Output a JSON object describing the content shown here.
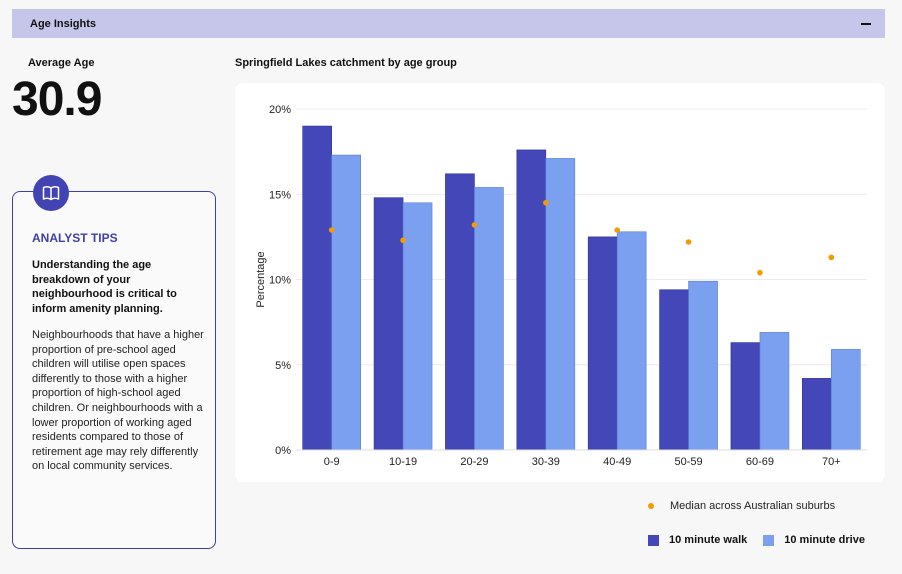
{
  "header": {
    "title": "Age Insights"
  },
  "average": {
    "label": "Average Age",
    "value": "30.9"
  },
  "tips": {
    "heading": "ANALYST TIPS",
    "bold_text": "Understanding the age breakdown of your neighbourhood is critical to inform amenity planning.",
    "body_text": "Neighbourhoods that have a higher proportion of pre-school aged children will utilise open spaces differently to those with a higher proportion of high-school aged children. Or neighbourhoods with a lower proportion of working aged residents compared to those of retirement age may rely differently on local community services.",
    "icon": "book-icon"
  },
  "chart_title": "Springfield Lakes catchment by age group",
  "colors": {
    "walk": "#4347b7",
    "drive": "#7ba0ef",
    "median": "#f59b00",
    "header": "#c5c6ea",
    "accent": "#3f3fa8"
  },
  "chart_data": {
    "type": "bar",
    "title": "Springfield Lakes catchment by age group",
    "xlabel": "",
    "ylabel": "Percentage",
    "categories": [
      "0-9",
      "10-19",
      "20-29",
      "30-39",
      "40-49",
      "50-59",
      "60-69",
      "70+"
    ],
    "series": [
      {
        "name": "10 minute walk",
        "values": [
          19.0,
          14.8,
          16.2,
          17.6,
          12.5,
          9.4,
          6.3,
          4.2
        ]
      },
      {
        "name": "10 minute drive",
        "values": [
          17.3,
          14.5,
          15.4,
          17.1,
          12.8,
          9.9,
          6.9,
          5.9
        ]
      }
    ],
    "median": {
      "name": "Median across Australian suburbs",
      "values": [
        12.9,
        12.3,
        13.2,
        14.5,
        12.9,
        12.2,
        10.4,
        11.3
      ]
    },
    "ylim": [
      0,
      20
    ],
    "yticks": [
      "0%",
      "5%",
      "10%",
      "15%",
      "20%"
    ],
    "ytick_values": [
      0,
      5,
      10,
      15,
      20
    ],
    "grid": true,
    "legend_position": "bottom-right"
  }
}
